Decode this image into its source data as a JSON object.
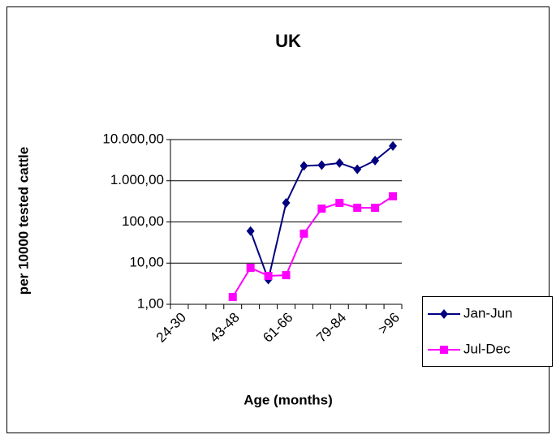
{
  "chart_data": {
    "type": "line",
    "title": "UK",
    "y_label": "per 10000 tested cattle",
    "x_label": "Age (months)",
    "categories": [
      "24-30",
      null,
      null,
      "43-48",
      null,
      null,
      "61-66",
      null,
      null,
      "79-84",
      null,
      null,
      ">96"
    ],
    "series": [
      {
        "name": "Jan-Jun",
        "color": "#000080",
        "marker": "diamond",
        "values": [
          null,
          null,
          null,
          null,
          60,
          4,
          290,
          2300,
          2400,
          2700,
          1900,
          3100,
          7000
        ]
      },
      {
        "name": "Jul-Dec",
        "color": "#ff00ff",
        "marker": "square",
        "values": [
          null,
          null,
          null,
          1.5,
          7.7,
          4.9,
          5.1,
          52,
          210,
          290,
          220,
          220,
          420
        ]
      }
    ],
    "log_y": true,
    "ylim": [
      1,
      10000
    ],
    "yticks": [
      {
        "value": 1,
        "label": "1,00"
      },
      {
        "value": 10,
        "label": "10,00"
      },
      {
        "value": 100,
        "label": "100,00"
      },
      {
        "value": 1000,
        "label": "1.000,00"
      },
      {
        "value": 10000,
        "label": "10.000,00"
      }
    ],
    "grid": true,
    "legend": "right"
  }
}
